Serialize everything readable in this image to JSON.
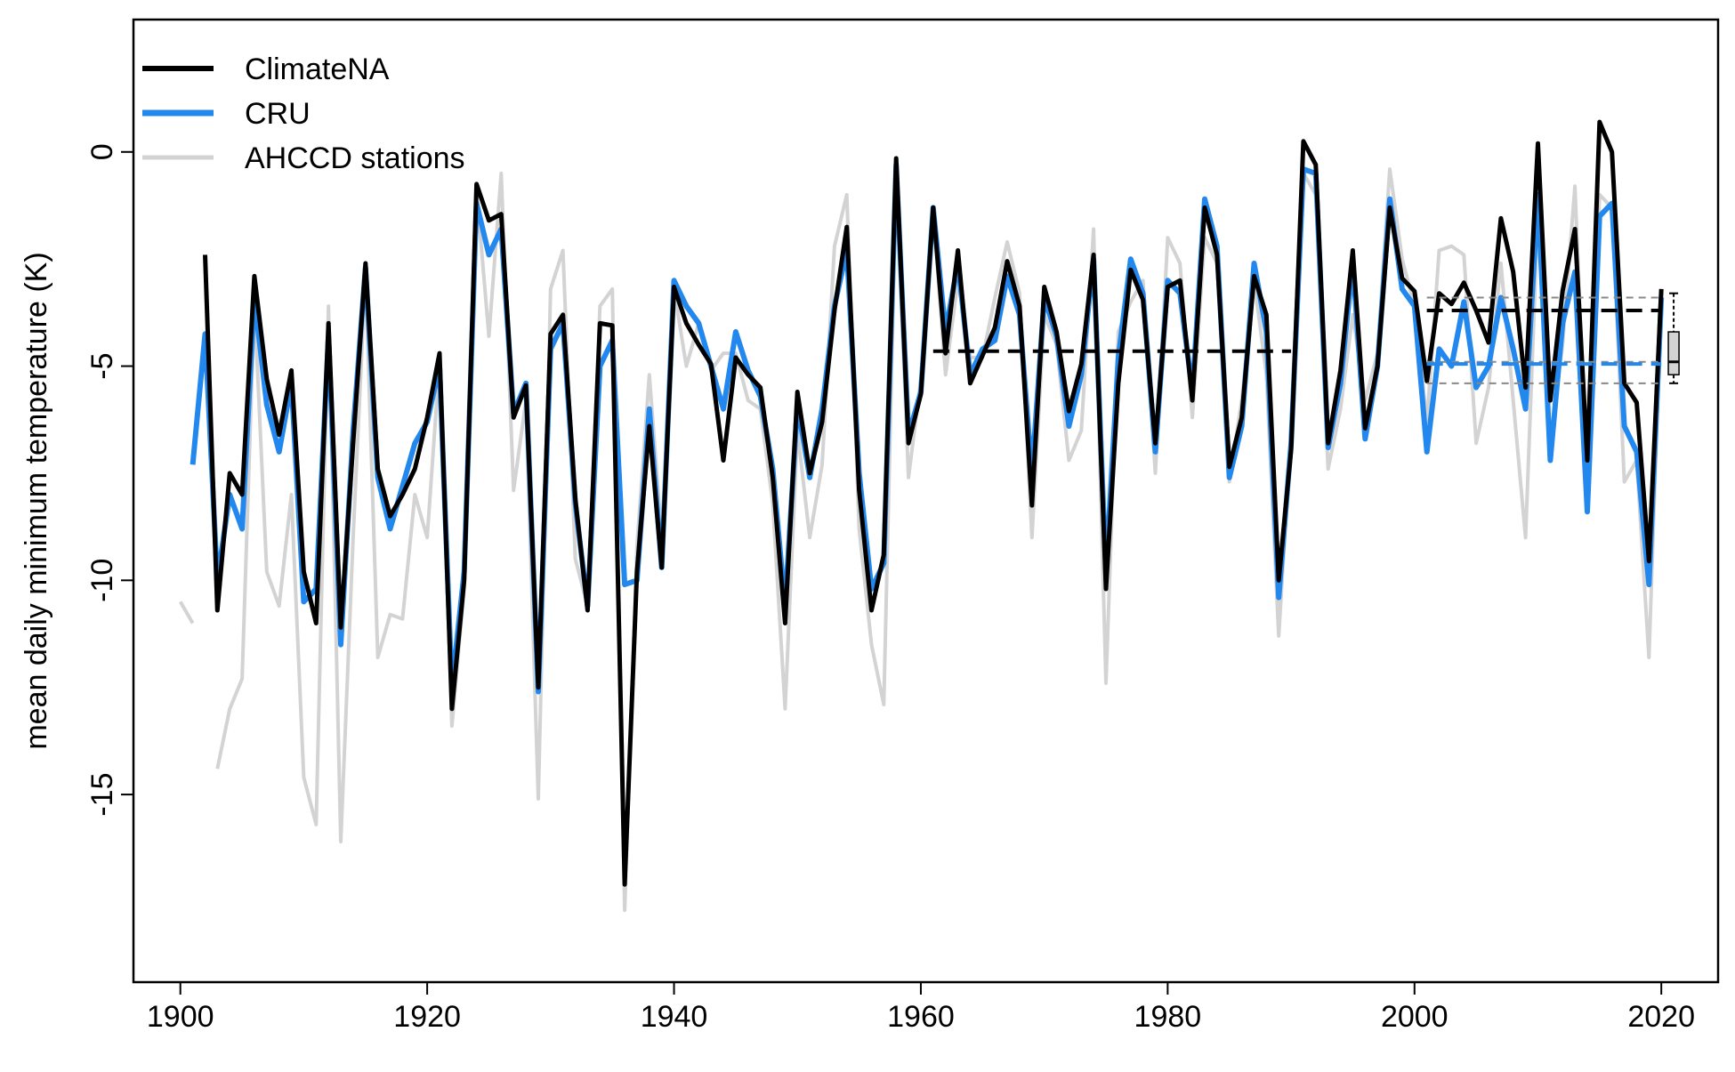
{
  "chart_data": {
    "type": "line",
    "ylabel": "mean daily minimum temperature (K)",
    "xlim": [
      1896.2,
      2024.6
    ],
    "ylim": [
      -19.38,
      3.09
    ],
    "xticks": [
      1900,
      1920,
      1940,
      1960,
      1980,
      2000,
      2020
    ],
    "yticks": [
      0,
      -5,
      -10,
      -15
    ],
    "legend": "top-left",
    "x": [
      1900,
      1901,
      1902,
      1903,
      1904,
      1905,
      1906,
      1907,
      1908,
      1909,
      1910,
      1911,
      1912,
      1913,
      1914,
      1915,
      1916,
      1917,
      1918,
      1919,
      1920,
      1921,
      1922,
      1923,
      1924,
      1925,
      1926,
      1927,
      1928,
      1929,
      1930,
      1931,
      1932,
      1933,
      1934,
      1935,
      1936,
      1937,
      1938,
      1939,
      1940,
      1941,
      1942,
      1943,
      1944,
      1945,
      1946,
      1947,
      1948,
      1949,
      1950,
      1951,
      1952,
      1953,
      1954,
      1955,
      1956,
      1957,
      1958,
      1959,
      1960,
      1961,
      1962,
      1963,
      1964,
      1965,
      1966,
      1967,
      1968,
      1969,
      1970,
      1971,
      1972,
      1973,
      1974,
      1975,
      1976,
      1977,
      1978,
      1979,
      1980,
      1981,
      1982,
      1983,
      1984,
      1985,
      1986,
      1987,
      1988,
      1989,
      1990,
      1991,
      1992,
      1993,
      1994,
      1995,
      1996,
      1997,
      1998,
      1999,
      2000,
      2001,
      2002,
      2003,
      2004,
      2005,
      2006,
      2007,
      2008,
      2009,
      2010,
      2011,
      2012,
      2013,
      2014,
      2015,
      2016,
      2017,
      2018,
      2019,
      2020
    ],
    "series": [
      {
        "name": "AHCCD stations",
        "color": "#d3d3d3",
        "width": 4,
        "values": [
          -10.5,
          -11.0,
          null,
          -14.4,
          -13.0,
          -12.3,
          -3.5,
          -9.8,
          -10.6,
          -8.0,
          -14.6,
          -15.7,
          -3.6,
          -16.1,
          -9.0,
          -2.8,
          -11.8,
          -10.8,
          -10.9,
          -8.0,
          -9.0,
          -4.9,
          -13.4,
          -10.2,
          -0.9,
          -4.3,
          -0.5,
          -7.9,
          -5.8,
          -15.1,
          -3.2,
          -2.3,
          -9.5,
          -10.6,
          -3.6,
          -3.2,
          -17.7,
          -9.2,
          -5.2,
          -9.0,
          -3.2,
          -5.0,
          -4.0,
          -5.1,
          -4.7,
          -4.7,
          -5.8,
          -6.0,
          -8.2,
          -13.0,
          -6.5,
          -9.0,
          -7.3,
          -2.2,
          -1.0,
          -8.8,
          -11.5,
          -12.9,
          -0.6,
          -7.6,
          -5.3,
          -1.4,
          -5.2,
          -3.0,
          -4.8,
          -4.8,
          -3.4,
          -2.1,
          -3.3,
          -9.0,
          -3.8,
          -4.5,
          -7.2,
          -6.5,
          -1.8,
          -12.4,
          -4.2,
          -3.5,
          -3.0,
          -7.5,
          -2.0,
          -2.6,
          -6.2,
          -2.0,
          -2.6,
          -7.7,
          -5.8,
          -3.0,
          -5.2,
          -11.3,
          -6.5,
          -0.5,
          -1.0,
          -7.4,
          -6.0,
          -3.8,
          -5.8,
          -4.7,
          -0.4,
          -2.5,
          -3.6,
          -6.3,
          -2.3,
          -2.2,
          -2.4,
          -6.8,
          -5.5,
          -2.6,
          -5.8,
          -9.0,
          -1.4,
          -6.8,
          -4.5,
          -0.8,
          -8.0,
          -1.0,
          -1.3,
          -7.7,
          -7.2,
          -11.8,
          -3.3
        ]
      },
      {
        "name": "CRU",
        "color": "#2288ee",
        "width": 6,
        "values": [
          null,
          -7.3,
          -4.25,
          -10.0,
          -8.0,
          -8.8,
          -3.4,
          -5.9,
          -7.0,
          -5.4,
          -10.5,
          -10.2,
          -4.3,
          -11.5,
          -6.5,
          -2.7,
          -7.6,
          -8.8,
          -7.8,
          -6.8,
          -6.3,
          -5.0,
          -12.5,
          -9.8,
          -1.2,
          -2.4,
          -1.8,
          -6.1,
          -5.4,
          -12.6,
          -4.6,
          -4.0,
          -8.2,
          -10.6,
          -5.0,
          -4.4,
          -10.1,
          -10.0,
          -6.0,
          -9.7,
          -3.0,
          -3.6,
          -4.0,
          -5.0,
          -6.0,
          -4.2,
          -5.1,
          -5.7,
          -7.4,
          -10.6,
          -5.9,
          -7.6,
          -6.0,
          -3.6,
          -2.3,
          -7.5,
          -10.2,
          -9.6,
          -0.3,
          -6.6,
          -5.6,
          -1.3,
          -4.2,
          -2.6,
          -5.2,
          -4.6,
          -4.4,
          -2.9,
          -3.8,
          -7.5,
          -3.4,
          -4.3,
          -6.4,
          -5.2,
          -2.5,
          -9.8,
          -4.8,
          -2.5,
          -3.3,
          -7.0,
          -3.0,
          -3.3,
          -5.6,
          -1.1,
          -2.2,
          -7.6,
          -6.4,
          -2.6,
          -4.2,
          -10.4,
          -6.8,
          -0.4,
          -0.5,
          -6.9,
          -5.4,
          -2.6,
          -6.7,
          -5.0,
          -1.1,
          -3.2,
          -3.6,
          -7.0,
          -4.6,
          -5.0,
          -3.5,
          -5.5,
          -5.0,
          -3.4,
          -4.6,
          -6.0,
          -1.0,
          -7.2,
          -4.0,
          -2.8,
          -8.4,
          -1.5,
          -1.2,
          -6.4,
          -7.0,
          -10.1,
          -3.4
        ]
      },
      {
        "name": "ClimateNA",
        "color": "#000000",
        "width": 5,
        "values": [
          null,
          null,
          -2.4,
          -10.7,
          -7.5,
          -8.0,
          -2.9,
          -5.3,
          -6.6,
          -5.1,
          -9.8,
          -11.0,
          -4.0,
          -11.1,
          -6.8,
          -2.6,
          -7.4,
          -8.5,
          -8.0,
          -7.4,
          -6.2,
          -4.7,
          -13.0,
          -10.0,
          -0.75,
          -1.6,
          -1.45,
          -6.2,
          -5.45,
          -12.5,
          -4.25,
          -3.8,
          -8.1,
          -10.7,
          -4.0,
          -4.05,
          -17.1,
          -9.8,
          -6.4,
          -9.7,
          -3.15,
          -4.0,
          -4.5,
          -4.95,
          -7.2,
          -4.8,
          -5.2,
          -5.5,
          -7.6,
          -11.0,
          -5.6,
          -7.5,
          -6.3,
          -3.7,
          -1.75,
          -7.9,
          -10.7,
          -9.4,
          -0.15,
          -6.8,
          -5.65,
          -1.3,
          -4.7,
          -2.3,
          -5.4,
          -4.75,
          -4.1,
          -2.55,
          -3.6,
          -8.25,
          -3.15,
          -4.2,
          -6.05,
          -4.95,
          -2.4,
          -10.2,
          -5.4,
          -2.75,
          -3.45,
          -6.8,
          -3.15,
          -3.0,
          -5.8,
          -1.3,
          -2.4,
          -7.35,
          -6.2,
          -2.9,
          -3.8,
          -10.0,
          -6.95,
          0.25,
          -0.3,
          -6.8,
          -5.1,
          -2.3,
          -6.45,
          -5.0,
          -1.3,
          -2.95,
          -3.25,
          -5.35,
          -3.3,
          -3.55,
          -3.05,
          -3.7,
          -4.45,
          -1.55,
          -2.8,
          -5.5,
          0.2,
          -5.8,
          -3.25,
          -1.8,
          -7.2,
          0.7,
          0.0,
          -5.4,
          -5.85,
          -9.55,
          -3.2
        ]
      }
    ],
    "mean_lines": [
      {
        "from": 1961,
        "to": 1990,
        "value": -4.65,
        "color": "#000000",
        "width": 4
      },
      {
        "from": 2001,
        "to": 2020,
        "value": -3.4,
        "color": "#888888",
        "width": 2
      },
      {
        "from": 2001,
        "to": 2020,
        "value": -4.9,
        "color": "#888888",
        "width": 2
      },
      {
        "from": 2001,
        "to": 2020,
        "value": -5.4,
        "color": "#888888",
        "width": 2
      },
      {
        "from": 2001,
        "to": 2020,
        "value": -3.7,
        "color": "#000000",
        "width": 4
      },
      {
        "from": 2001,
        "to": 2020,
        "value": -4.95,
        "color": "#2288ee",
        "width": 4
      }
    ],
    "box": {
      "x": 2021,
      "min": -5.4,
      "q1": -5.2,
      "median": -4.9,
      "q3": -4.2,
      "max": -3.3,
      "color": "#d3d3d3"
    }
  }
}
